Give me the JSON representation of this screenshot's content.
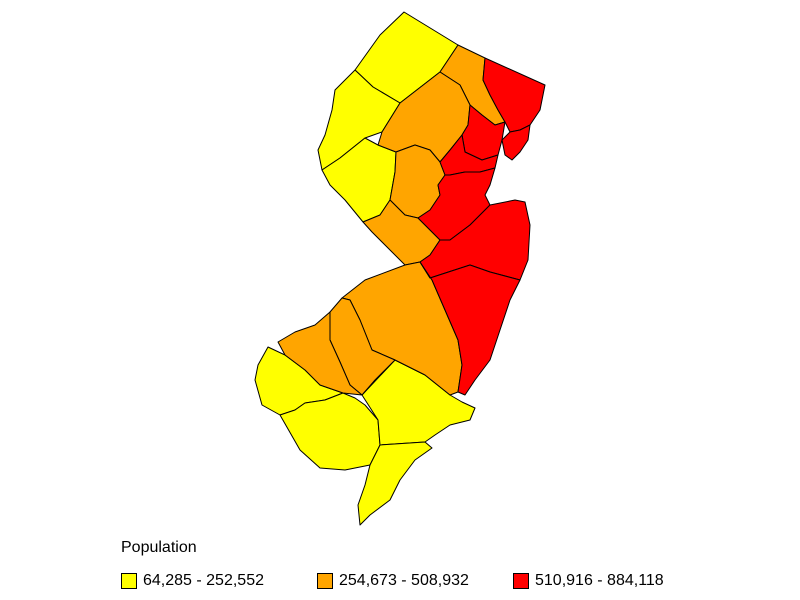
{
  "legend": {
    "title": "Population",
    "classes": [
      {
        "label": "64,285 - 252,552",
        "color": "#ffff00"
      },
      {
        "label": "254,673 - 508,932",
        "color": "#ffa500"
      },
      {
        "label": "510,916 - 884,118",
        "color": "#ff0000"
      }
    ]
  },
  "colors": {
    "outline": "#000000",
    "background": "#ffffff"
  }
}
